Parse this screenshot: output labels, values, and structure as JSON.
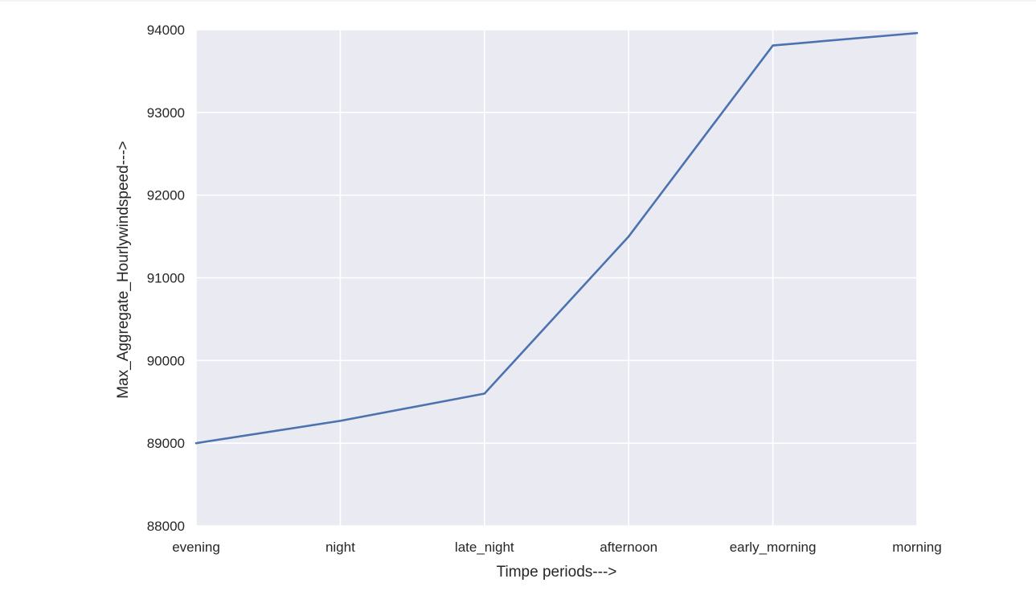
{
  "chart_data": {
    "type": "line",
    "title": "",
    "xlabel": "Timpe periods--->",
    "ylabel": "Max_Aggregate_Hourlywindspeed--->",
    "categories": [
      "evening",
      "night",
      "late_night",
      "afternoon",
      "early_morning",
      "morning"
    ],
    "series": [
      {
        "values": [
          89000,
          89270,
          89600,
          91500,
          93810,
          93960
        ]
      }
    ],
    "ylim": [
      88000,
      94000
    ],
    "yticks": [
      88000,
      89000,
      90000,
      91000,
      92000,
      93000,
      94000
    ],
    "grid": true,
    "line_color": "#4c72b0",
    "plot_background": "#eaeaf2",
    "grid_color": "#ffffff"
  }
}
